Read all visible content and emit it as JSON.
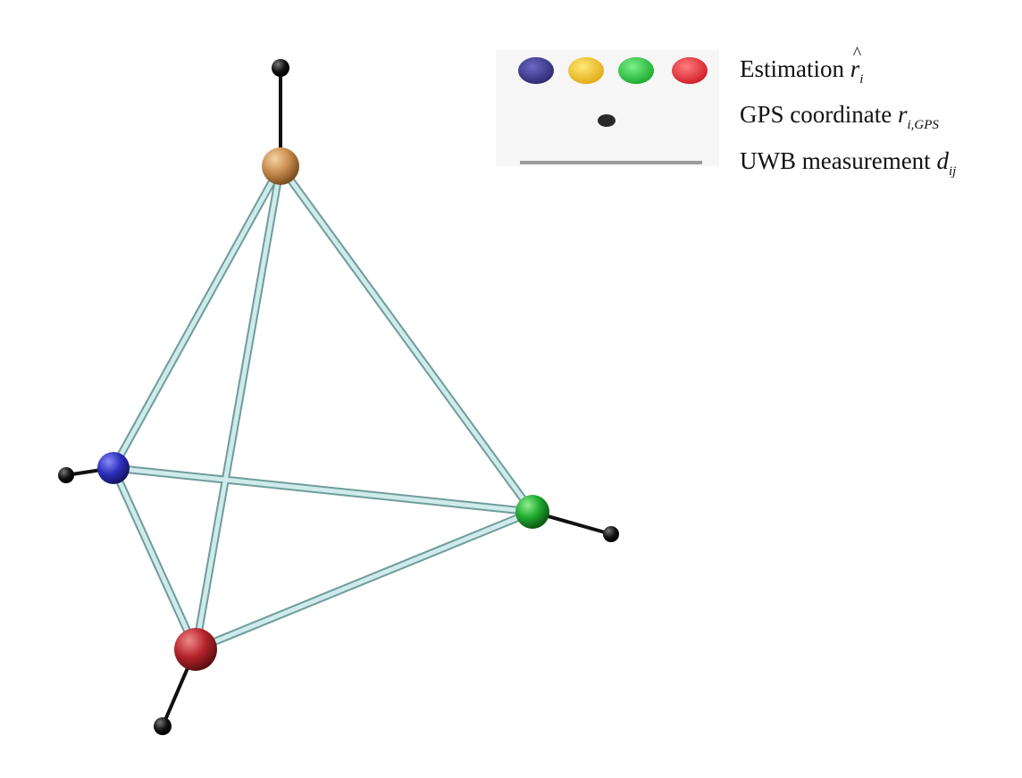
{
  "legend": {
    "estimation": {
      "label": "Estimation",
      "symbol": "r",
      "hat": true,
      "subscript": "i"
    },
    "gps": {
      "label": "GPS coordinate",
      "symbol": "r",
      "subscript": "i,GPS"
    },
    "uwb": {
      "label": "UWB measurement",
      "symbol": "d",
      "subscript": "ij"
    },
    "estimation_swatches": [
      "#3a3580",
      "#f2c21a",
      "#28c43c",
      "#e0232a"
    ],
    "gps_swatch": "#2a2a2a",
    "uwb_swatch": "#9a9a9a"
  },
  "nodes": [
    {
      "id": "top",
      "color": "#c98b4d"
    },
    {
      "id": "left",
      "color": "#2c2fbf"
    },
    {
      "id": "right",
      "color": "#1fa82e"
    },
    {
      "id": "bottom",
      "color": "#b5242a"
    }
  ],
  "edge_color": "#cce8e8",
  "edge_outline": "#6f9c9c",
  "gps_color": "#111111"
}
